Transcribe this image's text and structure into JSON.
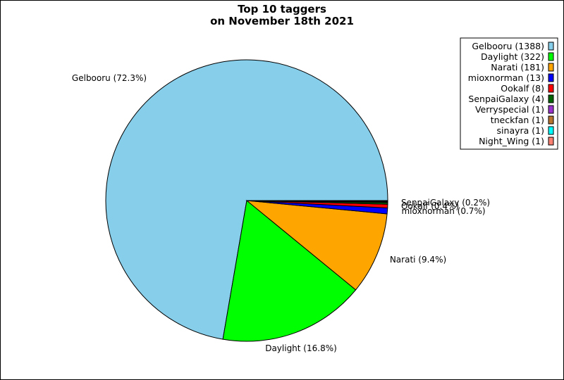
{
  "chart_data": {
    "type": "pie",
    "title_lines": [
      "Top 10 taggers",
      "on November 18th 2021"
    ],
    "series": [
      {
        "name": "Gelbooru",
        "value": 1388,
        "color": "#87ceeb",
        "legend": "Gelbooru (1388)",
        "slice_label": "Gelbooru (72.3%)",
        "show_label": true
      },
      {
        "name": "Daylight",
        "value": 322,
        "color": "#00ff00",
        "legend": "Daylight (322)",
        "slice_label": "Daylight (16.8%)",
        "show_label": true
      },
      {
        "name": "Narati",
        "value": 181,
        "color": "#ffa500",
        "legend": "Narati (181)",
        "slice_label": "Narati (9.4%)",
        "show_label": true
      },
      {
        "name": "mioxnorman",
        "value": 13,
        "color": "#0000ff",
        "legend": "mioxnorman (13)",
        "slice_label": "mioxnorman (0.7%)",
        "show_label": true
      },
      {
        "name": "Ookalf",
        "value": 8,
        "color": "#ff0000",
        "legend": "Ookalf (8)",
        "slice_label": "Ookalf (0.4%)",
        "show_label": true
      },
      {
        "name": "SenpaiGalaxy",
        "value": 4,
        "color": "#006400",
        "legend": "SenpaiGalaxy (4)",
        "slice_label": "SenpaiGalaxy (0.2%)",
        "show_label": true
      },
      {
        "name": "Verryspecial",
        "value": 1,
        "color": "#9932cc",
        "legend": "Verryspecial (1)",
        "slice_label": "",
        "show_label": false
      },
      {
        "name": "tneckfan",
        "value": 1,
        "color": "#b8732e",
        "legend": "tneckfan (1)",
        "slice_label": "",
        "show_label": false
      },
      {
        "name": "sinayra",
        "value": 1,
        "color": "#00ffff",
        "legend": "sinayra (1)",
        "slice_label": "",
        "show_label": false
      },
      {
        "name": "Night_Wing",
        "value": 1,
        "color": "#fa8072",
        "legend": "Night_Wing (1)",
        "slice_label": "",
        "show_label": false
      }
    ],
    "legend_position": "top-right"
  }
}
